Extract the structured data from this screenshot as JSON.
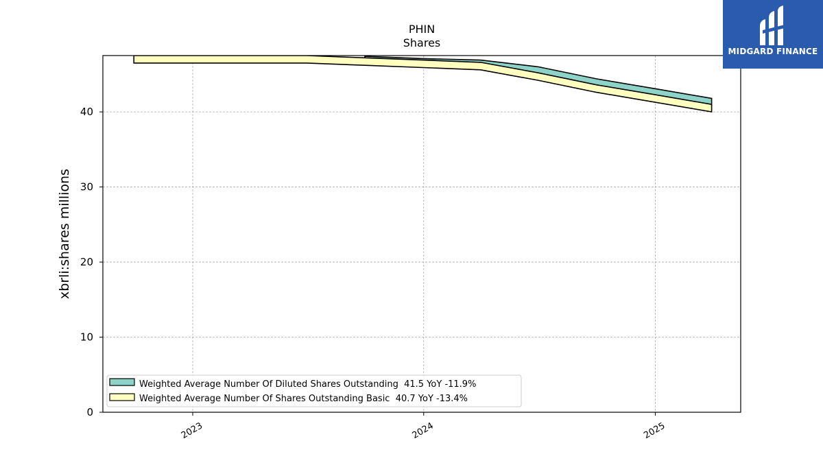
{
  "brand": {
    "name": "MIDGARD FINANCE",
    "bg_color": "#2b5bad"
  },
  "chart_data": {
    "type": "area",
    "title": "PHIN",
    "subtitle": "Shares",
    "ylabel": "xbrli:shares millions",
    "xlabel": "",
    "ylim": [
      0,
      47.5
    ],
    "xlim": [
      "2022-08-12",
      "2025-05-16"
    ],
    "yticks": [
      0,
      10,
      20,
      30,
      40
    ],
    "xticks": [
      {
        "date": "2023-01-01",
        "label": "2023"
      },
      {
        "date": "2024-01-01",
        "label": "2024"
      },
      {
        "date": "2025-01-01",
        "label": "2025"
      }
    ],
    "grid": true,
    "legend_position": "lower-left",
    "series": [
      {
        "name": "Weighted Average Number Of Diluted Shares Outstanding  41.5 YoY -11.9%",
        "color": "#8dd3c7",
        "points": [
          {
            "x": "2023-09-30",
            "y": 47.4
          },
          {
            "x": "2023-12-31",
            "y": 47.1
          },
          {
            "x": "2024-03-31",
            "y": 46.9
          },
          {
            "x": "2024-06-30",
            "y": 46.0
          },
          {
            "x": "2024-09-30",
            "y": 44.4
          },
          {
            "x": "2024-12-31",
            "y": 43.1
          },
          {
            "x": "2025-03-31",
            "y": 41.8
          }
        ]
      },
      {
        "name": "Weighted Average Number Of Shares Outstanding Basic  40.7 YoY -13.4%",
        "color": "#ffffbf",
        "points": [
          {
            "x": "2022-09-30",
            "y": 47.5
          },
          {
            "x": "2022-12-31",
            "y": 47.5
          },
          {
            "x": "2023-03-31",
            "y": 47.5
          },
          {
            "x": "2023-06-30",
            "y": 47.5
          },
          {
            "x": "2023-09-30",
            "y": 47.2
          },
          {
            "x": "2023-12-31",
            "y": 46.9
          },
          {
            "x": "2024-03-31",
            "y": 46.6
          },
          {
            "x": "2024-06-30",
            "y": 45.2
          },
          {
            "x": "2024-09-30",
            "y": 43.6
          },
          {
            "x": "2024-12-31",
            "y": 42.3
          },
          {
            "x": "2025-03-31",
            "y": 41.0
          }
        ]
      }
    ]
  }
}
